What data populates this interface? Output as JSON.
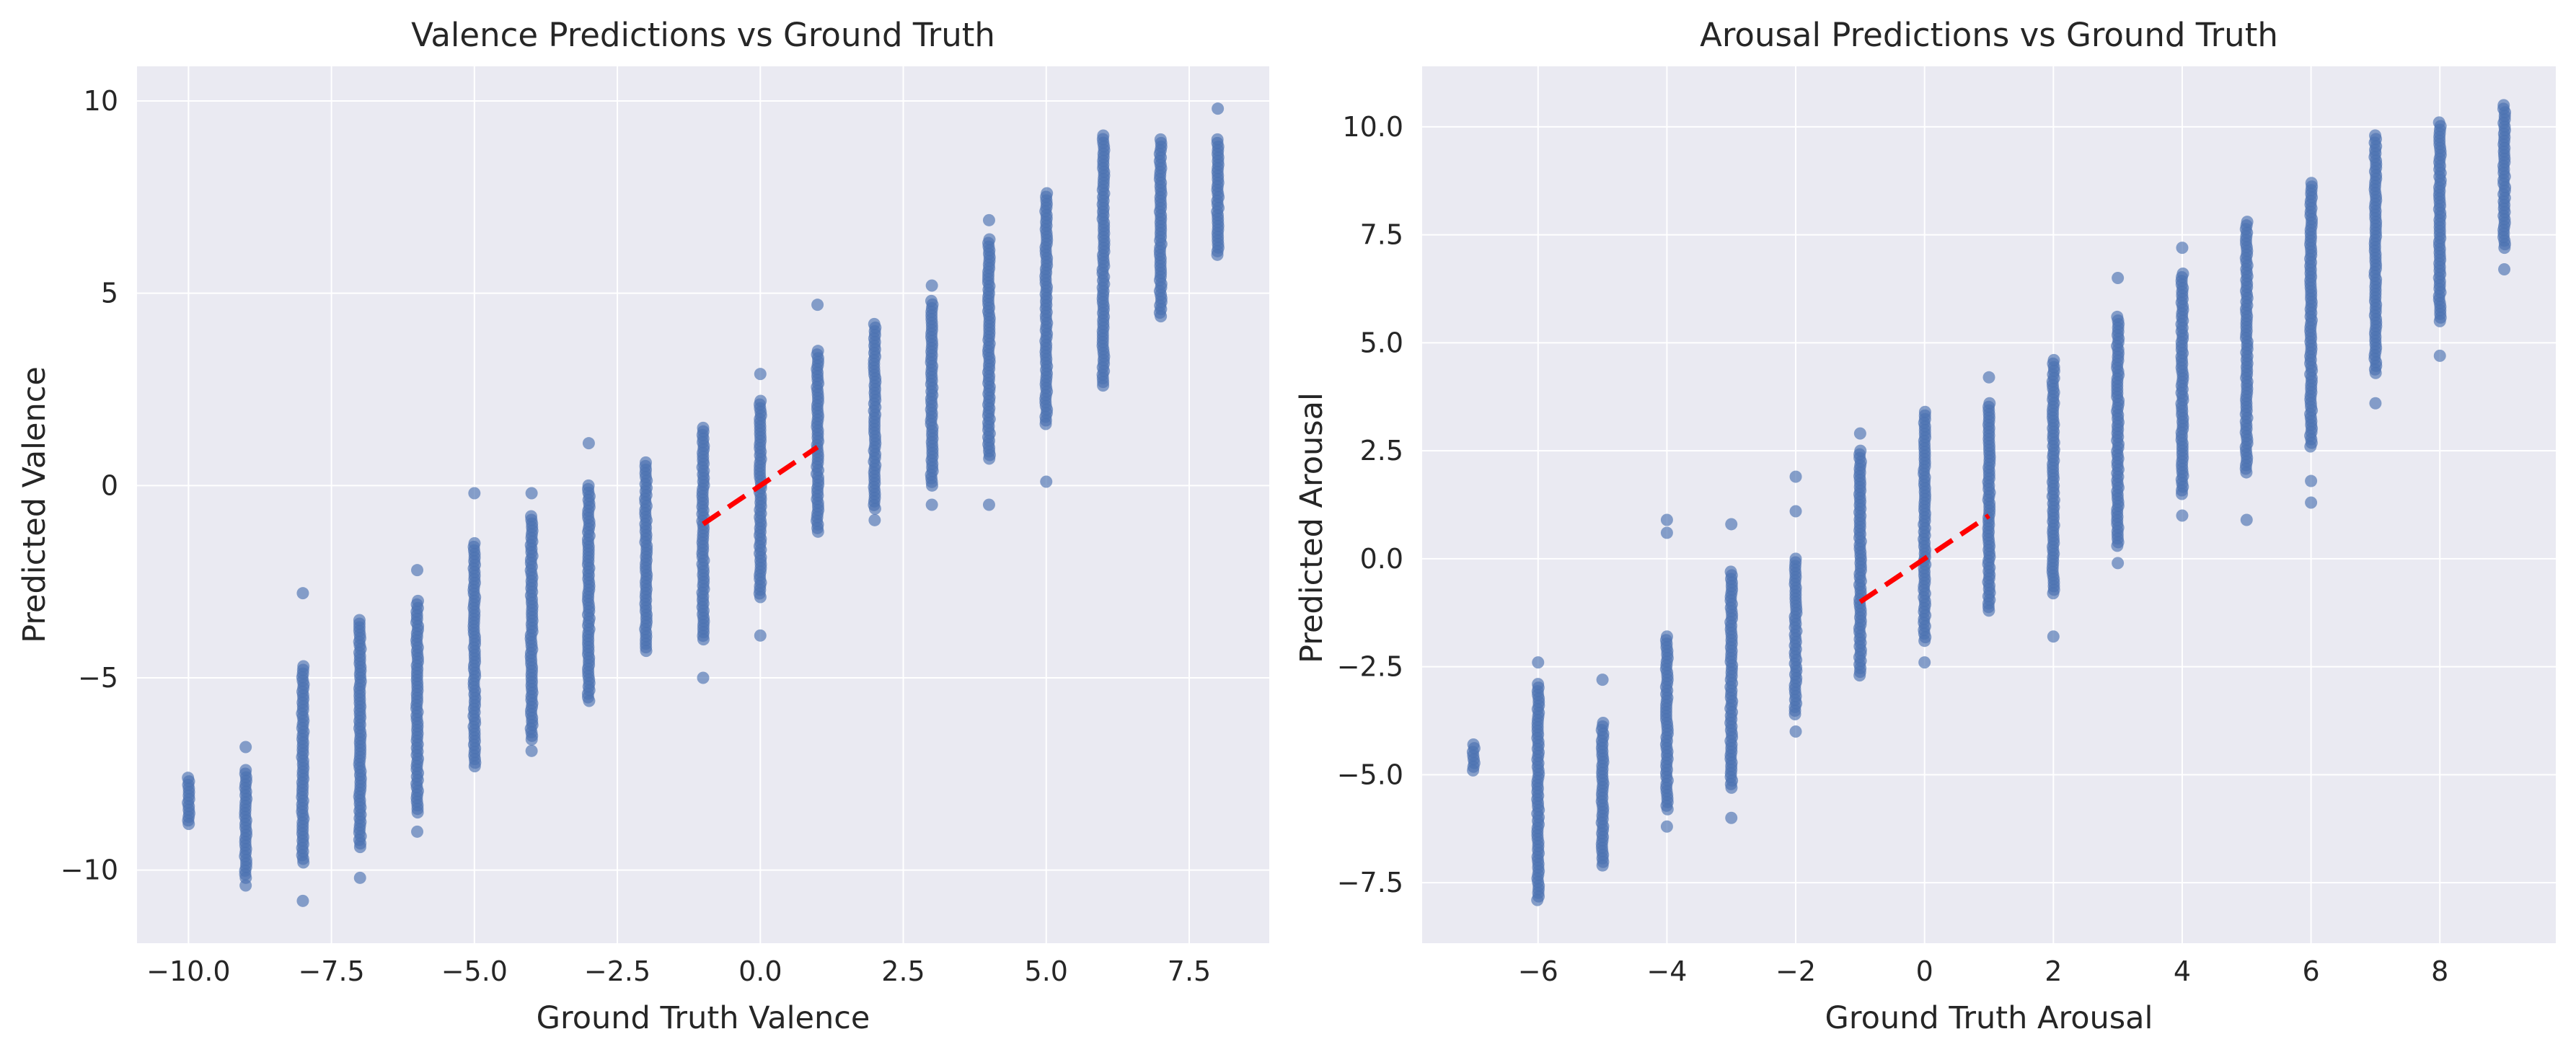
{
  "chart_data": [
    {
      "type": "scatter",
      "title": "Valence Predictions vs Ground Truth",
      "xlabel": "Ground Truth Valence",
      "ylabel": "Predicted Valence",
      "xlim": [
        -10.9,
        8.9
      ],
      "ylim": [
        -11.9,
        10.9
      ],
      "xticks": [
        -10.0,
        -7.5,
        -5.0,
        -2.5,
        0.0,
        2.5,
        5.0,
        7.5
      ],
      "xtick_labels": [
        "−10.0",
        "−7.5",
        "−5.0",
        "−2.5",
        "0.0",
        "2.5",
        "5.0",
        "7.5"
      ],
      "yticks": [
        -10,
        -5,
        0,
        5,
        10
      ],
      "ytick_labels": [
        "−10",
        "−5",
        "0",
        "5",
        "10"
      ],
      "grid": true,
      "series": [
        {
          "marker": "circle",
          "color": "#4c72b0",
          "columns": [
            {
              "x": -10,
              "min": -8.8,
              "max": -7.6,
              "outliers": []
            },
            {
              "x": -9,
              "min": -10.2,
              "max": -7.4,
              "outliers": [
                -10.4,
                -6.8
              ]
            },
            {
              "x": -8,
              "min": -9.8,
              "max": -4.7,
              "outliers": [
                -10.8,
                -2.8
              ]
            },
            {
              "x": -7,
              "min": -9.4,
              "max": -3.5,
              "outliers": [
                -10.2
              ]
            },
            {
              "x": -6,
              "min": -8.5,
              "max": -3.0,
              "outliers": [
                -9.0,
                -2.2
              ]
            },
            {
              "x": -5,
              "min": -7.3,
              "max": -1.5,
              "outliers": [
                -0.2
              ]
            },
            {
              "x": -4,
              "min": -6.6,
              "max": -0.8,
              "outliers": [
                -6.9,
                -0.2
              ]
            },
            {
              "x": -3,
              "min": -5.6,
              "max": 0.0,
              "outliers": [
                1.1
              ]
            },
            {
              "x": -2,
              "min": -4.3,
              "max": 0.6,
              "outliers": []
            },
            {
              "x": -1,
              "min": -4.0,
              "max": 1.5,
              "outliers": [
                -5.0
              ]
            },
            {
              "x": 0,
              "min": -2.9,
              "max": 2.2,
              "outliers": [
                -3.9,
                2.9
              ]
            },
            {
              "x": 1,
              "min": -1.2,
              "max": 3.5,
              "outliers": [
                4.7
              ]
            },
            {
              "x": 2,
              "min": -0.6,
              "max": 4.2,
              "outliers": [
                -0.9
              ]
            },
            {
              "x": 3,
              "min": 0.0,
              "max": 4.8,
              "outliers": [
                -0.5,
                5.2
              ]
            },
            {
              "x": 4,
              "min": 0.7,
              "max": 6.4,
              "outliers": [
                -0.5,
                6.9
              ]
            },
            {
              "x": 5,
              "min": 1.6,
              "max": 7.6,
              "outliers": [
                0.1
              ]
            },
            {
              "x": 6,
              "min": 2.6,
              "max": 9.1,
              "outliers": []
            },
            {
              "x": 7,
              "min": 4.4,
              "max": 9.0,
              "outliers": []
            },
            {
              "x": 8,
              "min": 6.0,
              "max": 9.0,
              "outliers": [
                9.8
              ]
            }
          ]
        }
      ],
      "reference_line": {
        "x": [
          -1,
          1
        ],
        "y": [
          -1,
          1
        ],
        "color": "#ff0000",
        "style": "dashed"
      }
    },
    {
      "type": "scatter",
      "title": "Arousal Predictions vs Ground Truth",
      "xlabel": "Ground Truth Arousal",
      "ylabel": "Predicted Arousal",
      "xlim": [
        -7.8,
        9.8
      ],
      "ylim": [
        -8.9,
        11.4
      ],
      "xticks": [
        -6,
        -4,
        -2,
        0,
        2,
        4,
        6,
        8
      ],
      "xtick_labels": [
        "−6",
        "−4",
        "−2",
        "0",
        "2",
        "4",
        "6",
        "8"
      ],
      "yticks": [
        -7.5,
        -5.0,
        -2.5,
        0.0,
        2.5,
        5.0,
        7.5,
        10.0
      ],
      "ytick_labels": [
        "−7.5",
        "−5.0",
        "−2.5",
        "0.0",
        "2.5",
        "5.0",
        "7.5",
        "10.0"
      ],
      "grid": true,
      "series": [
        {
          "marker": "circle",
          "color": "#4c72b0",
          "columns": [
            {
              "x": -7,
              "min": -4.9,
              "max": -4.3,
              "outliers": []
            },
            {
              "x": -6,
              "min": -7.9,
              "max": -2.9,
              "outliers": [
                -2.4
              ]
            },
            {
              "x": -5,
              "min": -7.1,
              "max": -3.8,
              "outliers": [
                -2.8
              ]
            },
            {
              "x": -4,
              "min": -5.8,
              "max": -1.8,
              "outliers": [
                -6.2,
                0.6,
                0.9
              ]
            },
            {
              "x": -3,
              "min": -5.3,
              "max": -0.3,
              "outliers": [
                -6.0,
                0.8
              ]
            },
            {
              "x": -2,
              "min": -3.6,
              "max": 0.0,
              "outliers": [
                -4.0,
                1.1,
                1.9
              ]
            },
            {
              "x": -1,
              "min": -2.7,
              "max": 2.5,
              "outliers": [
                2.9
              ]
            },
            {
              "x": 0,
              "min": -1.9,
              "max": 3.4,
              "outliers": [
                -2.4
              ]
            },
            {
              "x": 1,
              "min": -1.2,
              "max": 3.6,
              "outliers": [
                4.2
              ]
            },
            {
              "x": 2,
              "min": -0.8,
              "max": 4.6,
              "outliers": [
                -1.8
              ]
            },
            {
              "x": 3,
              "min": 0.3,
              "max": 5.6,
              "outliers": [
                -0.1,
                6.5
              ]
            },
            {
              "x": 4,
              "min": 1.5,
              "max": 6.6,
              "outliers": [
                1.0,
                7.2
              ]
            },
            {
              "x": 5,
              "min": 2.0,
              "max": 7.8,
              "outliers": [
                0.9
              ]
            },
            {
              "x": 6,
              "min": 2.6,
              "max": 8.7,
              "outliers": [
                1.3,
                1.8
              ]
            },
            {
              "x": 7,
              "min": 4.3,
              "max": 9.8,
              "outliers": [
                3.6
              ]
            },
            {
              "x": 8,
              "min": 5.5,
              "max": 10.1,
              "outliers": [
                4.7
              ]
            },
            {
              "x": 9,
              "min": 7.2,
              "max": 10.5,
              "outliers": [
                6.7
              ]
            }
          ]
        }
      ],
      "reference_line": {
        "x": [
          -1,
          1
        ],
        "y": [
          -1,
          1
        ],
        "color": "#ff0000",
        "style": "dashed"
      }
    }
  ]
}
